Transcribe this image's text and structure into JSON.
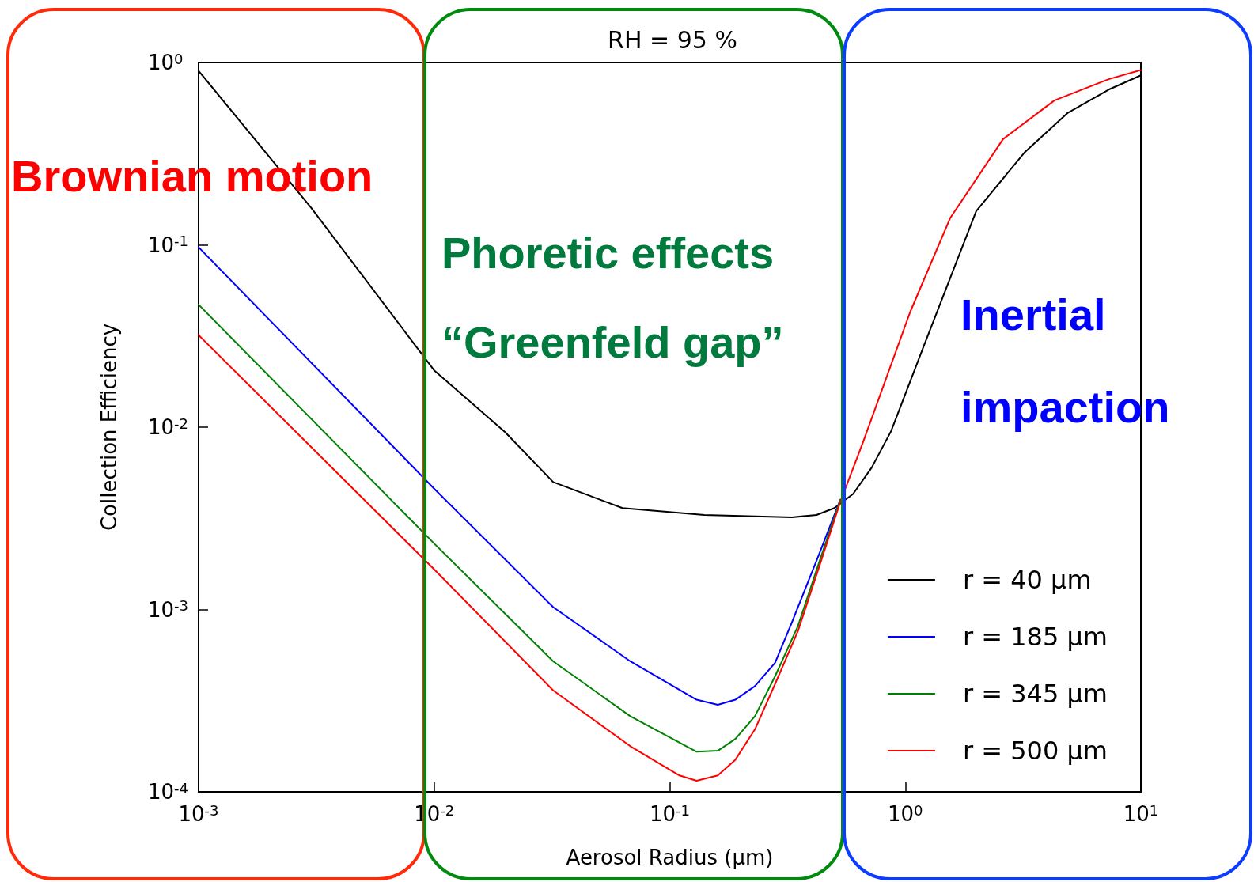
{
  "chart_data": {
    "type": "line",
    "title": "RH = 95 %",
    "xlabel": "Aerosol Radius (μm)",
    "ylabel": "Collection Efficiency",
    "log": "xy",
    "grid": false,
    "legend": "bottom right",
    "marker": "none",
    "line_style": "solid",
    "xlim": [
      0.001,
      10
    ],
    "ylim": [
      0.0001,
      1
    ],
    "xticks": [
      {
        "value": 0.001,
        "label": "10$^{-3}$"
      },
      {
        "value": 0.01,
        "label": "10$^{-2}$"
      },
      {
        "value": 0.1,
        "label": "10$^{-1}$"
      },
      {
        "value": 1,
        "label": "10$^{0}$"
      },
      {
        "value": 10,
        "label": "10$^{1}$"
      }
    ],
    "yticks": [
      {
        "value": 0.0001,
        "label": "10$^{-4}$"
      },
      {
        "value": 0.001,
        "label": "10$^{-3}$"
      },
      {
        "value": 0.01,
        "label": "10$^{-2}$"
      },
      {
        "value": 0.1,
        "label": "10$^{-1}$"
      },
      {
        "value": 1,
        "label": "10$^{0}$"
      }
    ],
    "series": [
      {
        "name": "r = 40 μm",
        "color": "#000000",
        "x": [
          0.001,
          0.003,
          0.01,
          0.02,
          0.032,
          0.063,
          0.14,
          0.33,
          0.42,
          0.5,
          0.6,
          0.72,
          0.87,
          1.2,
          2.0,
          3.2,
          4.9,
          7.3,
          10
        ],
        "values": [
          0.9,
          0.16,
          0.0205,
          0.0094,
          0.005,
          0.0036,
          0.0033,
          0.0032,
          0.0033,
          0.0036,
          0.0043,
          0.006,
          0.0095,
          0.028,
          0.153,
          0.32,
          0.53,
          0.71,
          0.85
        ]
      },
      {
        "name": "r = 185 μm",
        "color": "#0000ff",
        "x": [
          0.001,
          0.01,
          0.032,
          0.068,
          0.13,
          0.16,
          0.19,
          0.23,
          0.28,
          0.33,
          0.43,
          0.53
        ],
        "values": [
          0.097,
          0.0046,
          0.00103,
          0.00052,
          0.00032,
          0.0003,
          0.00032,
          0.00038,
          0.00051,
          0.00085,
          0.002,
          0.004
        ]
      },
      {
        "name": "r = 345 μm",
        "color": "#008000",
        "x": [
          0.001,
          0.01,
          0.032,
          0.068,
          0.13,
          0.16,
          0.19,
          0.23,
          0.28,
          0.35,
          0.43,
          0.53
        ],
        "values": [
          0.047,
          0.0023,
          0.00052,
          0.00026,
          0.000166,
          0.000168,
          0.000195,
          0.00026,
          0.00043,
          0.00081,
          0.0018,
          0.004
        ]
      },
      {
        "name": "r = 500 μm",
        "color": "#ff0000",
        "x": [
          0.001,
          0.01,
          0.032,
          0.068,
          0.11,
          0.13,
          0.16,
          0.19,
          0.23,
          0.28,
          0.35,
          0.43,
          0.53,
          0.66,
          1.05,
          1.55,
          2.6,
          4.3,
          7.3,
          10
        ],
        "values": [
          0.032,
          0.00166,
          0.00036,
          0.000178,
          0.000123,
          0.000115,
          0.000123,
          0.00015,
          0.00022,
          0.00039,
          0.00076,
          0.0017,
          0.0039,
          0.0082,
          0.043,
          0.14,
          0.38,
          0.62,
          0.81,
          0.91
        ]
      }
    ],
    "annotations": [
      "Brownian motion",
      "Phoretic effects",
      "“Greenfeld gap”",
      "Inertial",
      "impaction"
    ]
  }
}
